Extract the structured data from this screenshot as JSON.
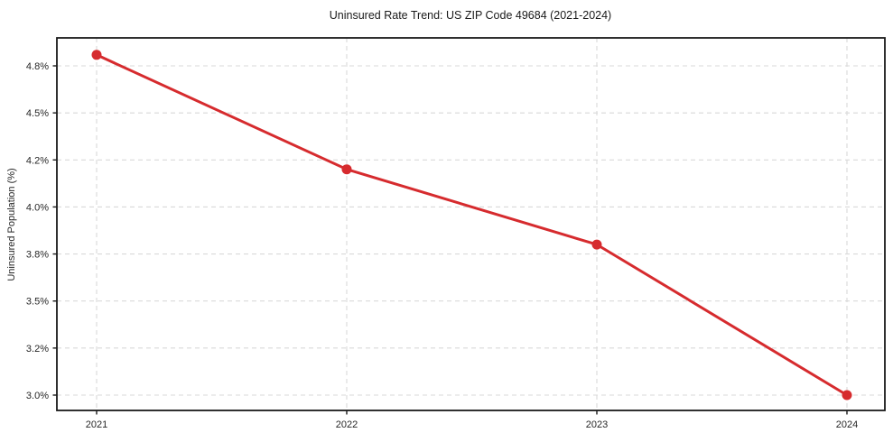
{
  "figure": {
    "background": "#ffffff"
  },
  "chart_data": {
    "type": "line",
    "title": "Uninsured Rate Trend: US ZIP Code 49684 (2021-2024)",
    "xlabel": "",
    "ylabel": "Uninsured Population (%)",
    "x": [
      2021,
      2022,
      2023,
      2024
    ],
    "values": [
      4.87,
      4.16,
      3.84,
      3.0
    ],
    "xtick_labels": [
      "2021",
      "2022",
      "2023",
      "2024"
    ],
    "ytick_labels": [
      "4.8%",
      "4.5%",
      "4.2%",
      "4.0%",
      "3.8%",
      "3.5%",
      "3.2%",
      "3.0%"
    ],
    "ytick_values": [
      4.8,
      4.5,
      4.2,
      4.0,
      3.8,
      3.5,
      3.2,
      3.0
    ],
    "ylim": [
      2.93,
      4.98
    ],
    "grid": "dashed-both-directions",
    "legend": "none",
    "marker": "circle",
    "colors": {
      "line": "#d62b2e",
      "marker": "#d62b2e",
      "grid": "#d9d9d9",
      "spine": "#1a1a1a",
      "text": "#262626"
    }
  }
}
